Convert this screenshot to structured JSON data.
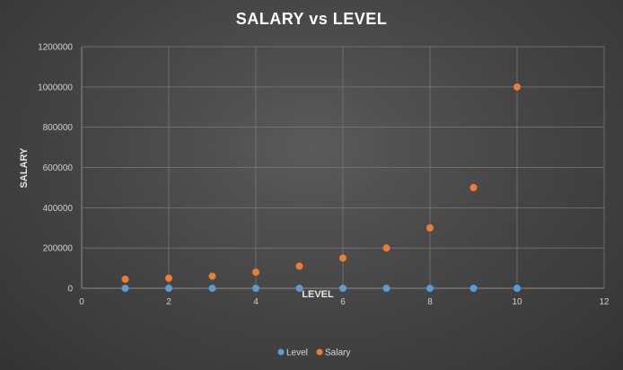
{
  "chart_data": {
    "type": "scatter",
    "title": "SALARY vs LEVEL",
    "xlabel": "LEVEL",
    "ylabel": "SALARY",
    "xlim": [
      0,
      12
    ],
    "ylim": [
      0,
      1200000
    ],
    "x_ticks": [
      0,
      2,
      4,
      6,
      8,
      10,
      12
    ],
    "y_ticks": [
      0,
      200000,
      400000,
      600000,
      800000,
      1000000,
      1200000
    ],
    "grid": true,
    "legend_position": "bottom",
    "x": [
      1,
      2,
      3,
      4,
      5,
      6,
      7,
      8,
      9,
      10
    ],
    "series": [
      {
        "name": "Level",
        "color": "#5b9bd5",
        "values": [
          1,
          2,
          3,
          4,
          5,
          6,
          7,
          8,
          9,
          10
        ]
      },
      {
        "name": "Salary",
        "color": "#ed7d31",
        "values": [
          45000,
          50000,
          60000,
          80000,
          110000,
          150000,
          200000,
          300000,
          500000,
          1000000
        ]
      }
    ]
  }
}
